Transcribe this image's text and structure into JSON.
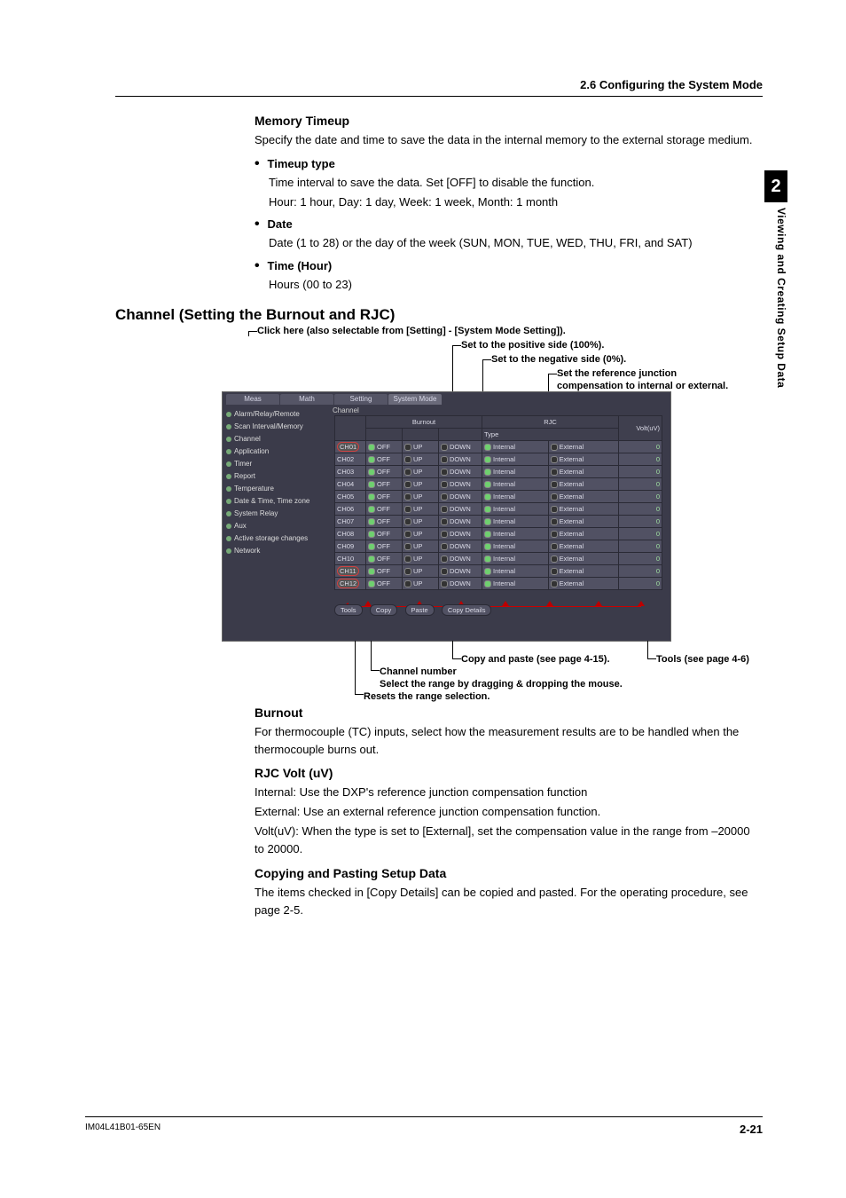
{
  "header": {
    "section": "2.6  Configuring the System Mode",
    "tabnum": "2",
    "vert": "Viewing and Creating Setup Data"
  },
  "mem": {
    "title": "Memory Timeup",
    "para": "Specify the date and time to save the data in the internal memory to the external storage medium.",
    "items": [
      {
        "t": "Timeup type",
        "b1": "Time interval to save the data. Set [OFF] to disable the function.",
        "b2": "Hour: 1 hour, Day: 1 day, Week: 1 week, Month: 1 month"
      },
      {
        "t": "Date",
        "b1": "Date (1 to 28) or the day of the week (SUN, MON, TUE, WED, THU, FRI, and SAT)"
      },
      {
        "t": "Time (Hour)",
        "b1": "Hours (00 to 23)"
      }
    ]
  },
  "main": "Channel (Setting the Burnout and RJC)",
  "call": {
    "top1": "Click here (also selectable from [Setting] - [System Mode Setting]).",
    "top2": "Set to the positive side (100%).",
    "top3": "Set to the negative side (0%).",
    "top4": "Set the reference junction",
    "top4b": "compensation to internal or external.",
    "b1": "Copy and paste (see page 4-15).",
    "b2": "Tools (see page 4-6)",
    "b3": "Channel number",
    "b4": "Select the range by dragging & dropping the mouse.",
    "b5": "Resets the range selection."
  },
  "ss": {
    "tabs": [
      "Meas",
      "Math",
      "Setting",
      "System Mode"
    ],
    "side": [
      "Alarm/Relay/Remote",
      "Scan Interval/Memory",
      "Channel",
      "Application",
      "Timer",
      "Report",
      "Temperature",
      "Date & Time, Time zone",
      "System Relay",
      "Aux",
      "Active storage changes",
      "Network"
    ],
    "panelLabel": "Channel",
    "head": {
      "burnout": "Burnout",
      "rjc": "RJC",
      "type": "Type",
      "volt": "Volt(uV)"
    },
    "cols": {
      "off": "OFF",
      "up": "UP",
      "down": "DOWN",
      "int": "Internal",
      "ext": "External"
    },
    "rows": [
      {
        "ch": "CH01",
        "v": "0"
      },
      {
        "ch": "CH02",
        "v": "0"
      },
      {
        "ch": "CH03",
        "v": "0"
      },
      {
        "ch": "CH04",
        "v": "0"
      },
      {
        "ch": "CH05",
        "v": "0"
      },
      {
        "ch": "CH06",
        "v": "0"
      },
      {
        "ch": "CH07",
        "v": "0"
      },
      {
        "ch": "CH08",
        "v": "0"
      },
      {
        "ch": "CH09",
        "v": "0"
      },
      {
        "ch": "CH10",
        "v": "0"
      },
      {
        "ch": "CH11",
        "v": "0"
      },
      {
        "ch": "CH12",
        "v": "0"
      }
    ],
    "tools": "Tools",
    "copy": "Copy",
    "paste": "Paste",
    "copydet": "Copy Details"
  },
  "burnout": {
    "h": "Burnout",
    "p": "For thermocouple (TC) inputs, select how the measurement results are to be handled when the thermocouple burns out.",
    "h2": "RJC  Volt (uV)",
    "p2a": "Internal: Use the DXP's reference junction compensation function",
    "p2b": "External: Use an external reference junction compensation function.",
    "p2c": "Volt(uV): When the type is set to [External], set the compensation value in the range from –20000 to 20000.",
    "h3": "Copying and Pasting Setup Data",
    "p3": "The items checked in [Copy Details] can be copied and pasted. For the operating procedure, see page 2-5."
  },
  "footer": {
    "doc": "IM04L41B01-65EN",
    "page": "2-21"
  }
}
